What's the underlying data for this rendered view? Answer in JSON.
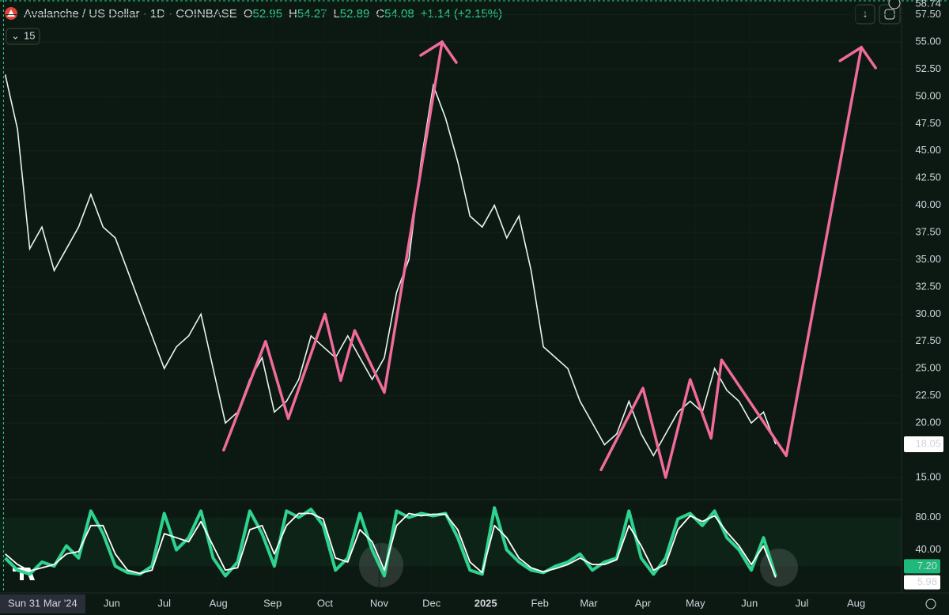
{
  "header": {
    "title": "Avalanche / US Dollar · 1D · COINBASE",
    "ohlc": [
      {
        "label": "O",
        "value": 52.95
      },
      {
        "label": "H",
        "value": 54.27
      },
      {
        "label": "L",
        "value": 52.89
      },
      {
        "label": "C",
        "value": 54.08
      }
    ],
    "change": "+1.14 (+2.15%)",
    "interval_badge": "15"
  },
  "chart_data": [
    {
      "type": "line",
      "name": "Avalanche / US Dollar",
      "color": "#e8f5ee",
      "x": [
        "2024-04-01",
        "2024-04-08",
        "2024-04-15",
        "2024-04-22",
        "2024-04-29",
        "2024-05-06",
        "2024-05-13",
        "2024-05-20",
        "2024-05-27",
        "2024-06-03",
        "2024-06-10",
        "2024-06-17",
        "2024-06-24",
        "2024-07-01",
        "2024-07-08",
        "2024-07-15",
        "2024-07-22",
        "2024-07-29",
        "2024-08-05",
        "2024-08-12",
        "2024-08-19",
        "2024-08-26",
        "2024-09-02",
        "2024-09-09",
        "2024-09-16",
        "2024-09-23",
        "2024-09-30",
        "2024-10-07",
        "2024-10-14",
        "2024-10-21",
        "2024-10-28",
        "2024-11-04",
        "2024-11-11",
        "2024-11-18",
        "2024-11-25",
        "2024-12-02",
        "2024-12-09",
        "2024-12-16",
        "2024-12-23",
        "2024-12-30",
        "2025-01-06",
        "2025-01-13",
        "2025-01-20",
        "2025-01-27",
        "2025-02-03",
        "2025-02-10",
        "2025-02-17",
        "2025-02-24",
        "2025-03-03",
        "2025-03-10",
        "2025-03-17",
        "2025-03-24",
        "2025-03-31",
        "2025-04-07",
        "2025-04-14",
        "2025-04-21",
        "2025-04-28",
        "2025-05-05",
        "2025-05-12",
        "2025-05-19",
        "2025-05-26",
        "2025-06-02",
        "2025-06-09",
        "2025-06-16"
      ],
      "values": [
        52,
        47,
        36,
        38,
        34,
        36,
        38,
        41,
        38,
        37,
        34,
        31,
        28,
        25,
        27,
        28,
        30,
        25,
        20,
        21,
        24,
        26,
        21,
        22,
        24,
        28,
        27,
        26,
        28,
        26,
        24,
        26,
        32,
        35,
        44,
        51,
        48,
        44,
        39,
        38,
        40,
        37,
        39,
        34,
        27,
        26,
        25,
        22,
        20,
        18,
        19,
        22,
        19,
        17,
        19,
        21,
        22,
        21,
        25,
        23,
        22,
        20,
        21,
        18.05
      ],
      "xlim": [
        "2024-03-29",
        "2025-08-27"
      ],
      "xticks": [
        {
          "value": "2024-06-01",
          "label": "Jun"
        },
        {
          "value": "2024-07-01",
          "label": "Jul"
        },
        {
          "value": "2024-08-01",
          "label": "Aug"
        },
        {
          "value": "2024-09-01",
          "label": "Sep"
        },
        {
          "value": "2024-10-01",
          "label": "Oct"
        },
        {
          "value": "2024-11-01",
          "label": "Nov"
        },
        {
          "value": "2024-12-01",
          "label": "Dec"
        },
        {
          "value": "2025-01-01",
          "label": "2025"
        },
        {
          "value": "2025-02-01",
          "label": "Feb"
        },
        {
          "value": "2025-03-01",
          "label": "Mar"
        },
        {
          "value": "2025-04-01",
          "label": "Apr"
        },
        {
          "value": "2025-05-01",
          "label": "May"
        },
        {
          "value": "2025-06-01",
          "label": "Jun"
        },
        {
          "value": "2025-07-01",
          "label": "Jul"
        },
        {
          "value": "2025-08-01",
          "label": "Aug"
        }
      ],
      "crosshair": {
        "value": "2024-03-31",
        "label": "Sun 31 Mar '24"
      },
      "ylim": [
        13.11,
        58.85
      ],
      "yticks": [
        {
          "value": 15,
          "label": "15.00"
        },
        {
          "value": 20,
          "label": "20.00"
        },
        {
          "value": 22.5,
          "label": "22.50"
        },
        {
          "value": 25,
          "label": "25.00"
        },
        {
          "value": 27.5,
          "label": "27.50"
        },
        {
          "value": 30,
          "label": "30.00"
        },
        {
          "value": 32.5,
          "label": "32.50"
        },
        {
          "value": 35,
          "label": "35.00"
        },
        {
          "value": 37.5,
          "label": "37.50"
        },
        {
          "value": 40,
          "label": "40.00"
        },
        {
          "value": 42.5,
          "label": "42.50"
        },
        {
          "value": 45,
          "label": "45.00"
        },
        {
          "value": 47.5,
          "label": "47.50"
        },
        {
          "value": 50,
          "label": "50.00"
        },
        {
          "value": 52.5,
          "label": "52.50"
        },
        {
          "value": 55,
          "label": "55.00"
        },
        {
          "value": 57.5,
          "label": "57.50"
        }
      ],
      "last_price": {
        "value": 18.05,
        "label": "18.05"
      },
      "high_label": {
        "value": 58.74,
        "label": "58.74"
      },
      "drawings": [
        {
          "color": "#f06b9c",
          "x": [
            "2024-08-04",
            "2024-08-28",
            "2024-09-10",
            "2024-10-01",
            "2024-10-10",
            "2024-10-18",
            "2024-11-04",
            "2024-12-07"
          ],
          "values": [
            17.5,
            27.5,
            20.4,
            30,
            23.9,
            28.5,
            22.8,
            55
          ]
        },
        {
          "color": "#f06b9c",
          "x": [
            "2025-03-08",
            "2025-04-01",
            "2025-04-14",
            "2025-04-28",
            "2025-05-10",
            "2025-05-16",
            "2025-06-22",
            "2025-08-04"
          ],
          "values": [
            15.7,
            23.2,
            15,
            24,
            18.6,
            25.8,
            17,
            54.5
          ]
        }
      ]
    },
    {
      "type": "oscillator",
      "ylim": [
        -11,
        102
      ],
      "yticks": [
        {
          "value": 40,
          "label": "40.00"
        },
        {
          "value": 80,
          "label": "80.00"
        }
      ],
      "band": [
        20,
        80
      ],
      "series": [
        {
          "color": "#2ed38f",
          "values": [
            30,
            15,
            10,
            25,
            20,
            45,
            30,
            88,
            60,
            20,
            12,
            10,
            20,
            85,
            40,
            55,
            88,
            30,
            8,
            25,
            88,
            60,
            20,
            88,
            80,
            90,
            70,
            15,
            30,
            85,
            40,
            8,
            88,
            80,
            85,
            82,
            85,
            55,
            15,
            10,
            92,
            40,
            25,
            15,
            12,
            20,
            25,
            35,
            15,
            25,
            30,
            88,
            30,
            10,
            30,
            78,
            85,
            70,
            88,
            55,
            40,
            15,
            55,
            7.2
          ],
          "last_label": "7.20"
        },
        {
          "color": "#ffffff",
          "values": [
            35,
            22,
            14,
            18,
            22,
            35,
            38,
            70,
            70,
            35,
            15,
            11,
            15,
            60,
            55,
            50,
            75,
            45,
            15,
            18,
            65,
            70,
            35,
            70,
            85,
            85,
            78,
            30,
            25,
            65,
            50,
            15,
            70,
            85,
            82,
            84,
            84,
            65,
            25,
            12,
            70,
            55,
            30,
            18,
            13,
            17,
            22,
            30,
            22,
            22,
            28,
            70,
            45,
            15,
            22,
            65,
            82,
            75,
            82,
            62,
            45,
            22,
            45,
            5.98
          ],
          "last_label": "5.98"
        }
      ]
    }
  ]
}
